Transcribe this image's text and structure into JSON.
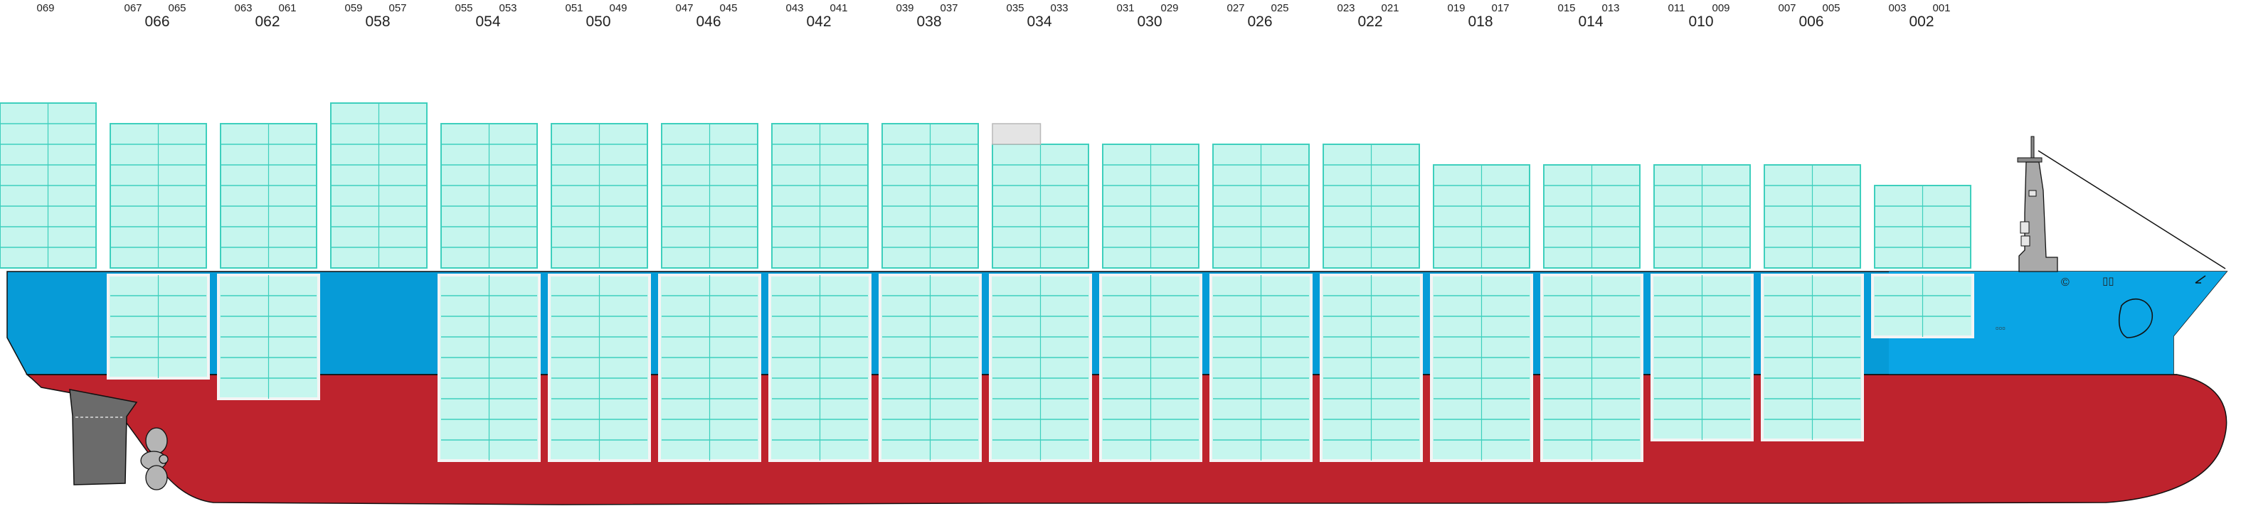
{
  "colors": {
    "hull_red": "#be232d",
    "hull_blue": "#069bd7",
    "hull_blue_bow": "#0aa5e5",
    "container_fill": "#c6f6ee",
    "container_line": "#3ecfbd",
    "empty_container": "#e4e4e4",
    "rudder": "#6b6b6b",
    "propeller": "#b5b5b5",
    "outline": "#111111"
  },
  "bays": [
    {
      "big": "",
      "left": "",
      "right": "069"
    },
    {
      "big": "066",
      "left": "067",
      "right": "065"
    },
    {
      "big": "062",
      "left": "063",
      "right": "061"
    },
    {
      "big": "058",
      "left": "059",
      "right": "057"
    },
    {
      "big": "054",
      "left": "055",
      "right": "053"
    },
    {
      "big": "050",
      "left": "051",
      "right": "049"
    },
    {
      "big": "046",
      "left": "047",
      "right": "045"
    },
    {
      "big": "042",
      "left": "043",
      "right": "041"
    },
    {
      "big": "038",
      "left": "039",
      "right": "037"
    },
    {
      "big": "034",
      "left": "035",
      "right": "033"
    },
    {
      "big": "030",
      "left": "031",
      "right": "029"
    },
    {
      "big": "026",
      "left": "027",
      "right": "025"
    },
    {
      "big": "022",
      "left": "023",
      "right": "021"
    },
    {
      "big": "018",
      "left": "019",
      "right": "017"
    },
    {
      "big": "014",
      "left": "015",
      "right": "013"
    },
    {
      "big": "010",
      "left": "011",
      "right": "009"
    },
    {
      "big": "006",
      "left": "007",
      "right": "005"
    },
    {
      "big": "002",
      "left": "003",
      "right": "001"
    }
  ],
  "deck_tiers": [
    8,
    7,
    7,
    8,
    7,
    7,
    7,
    7,
    7,
    6,
    6,
    6,
    6,
    5,
    5,
    5,
    5,
    4
  ],
  "hold_tiers": [
    0,
    5,
    6,
    0,
    9,
    9,
    9,
    9,
    9,
    9,
    9,
    9,
    9,
    9,
    9,
    8,
    8,
    3
  ],
  "empty_container_bays": [
    "034"
  ],
  "bow_marks": {
    "logo": "©",
    "plate": "▯▯",
    "windows": "▫▫▫"
  }
}
